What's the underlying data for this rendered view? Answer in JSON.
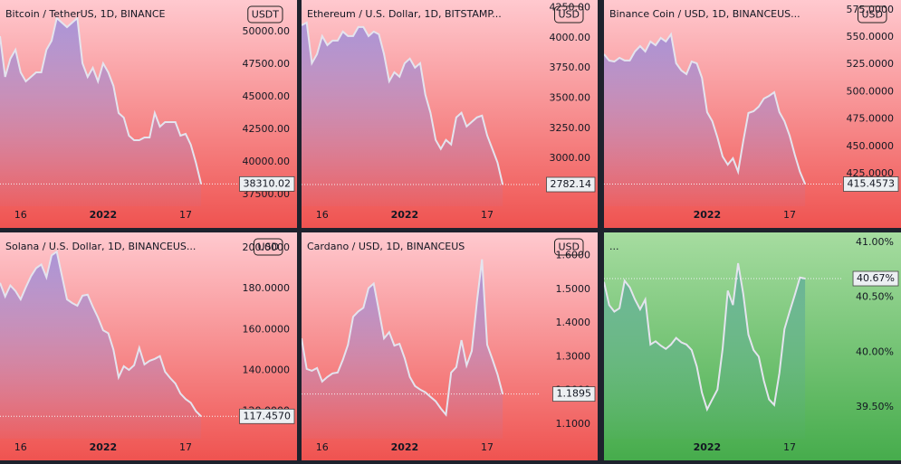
{
  "chart_data": [
    {
      "type": "line",
      "title": "Bitcoin / TetherUS, 1D, BINANCE",
      "currency": "USDT",
      "categories": [
        null,
        null,
        null,
        null,
        "16",
        null,
        null,
        null,
        null,
        null,
        null,
        null,
        null,
        null,
        null,
        null,
        null,
        null,
        null,
        null,
        "2022",
        null,
        null,
        null,
        null,
        null,
        null,
        null,
        null,
        null,
        null,
        null,
        null,
        null,
        null,
        null,
        "17",
        null,
        null,
        null,
        null,
        null,
        null,
        null,
        null,
        null
      ],
      "values": [
        49653,
        46528,
        47917,
        48611,
        46875,
        46181,
        46528,
        46875,
        46875,
        48611,
        49306,
        51042,
        50694,
        50347,
        50694,
        51042,
        47569,
        46528,
        47222,
        46181,
        47569,
        46875,
        45833,
        43750,
        43403,
        42014,
        41667,
        41667,
        41875,
        41875,
        43750,
        42708,
        43056,
        43056,
        43056,
        42014,
        42153,
        41319,
        39931,
        38310.02,
        null,
        null,
        null,
        null,
        null,
        null
      ],
      "last_value": 38310.02,
      "ylim": [
        36600,
        52430
      ],
      "yticks": [
        {
          "value": 37500,
          "label": "37500.00"
        },
        {
          "value": 40000,
          "label": "40000.00"
        },
        {
          "value": 42500,
          "label": "42500.00"
        },
        {
          "value": 45000,
          "label": "45000.00"
        },
        {
          "value": 47500,
          "label": "47500.00"
        },
        {
          "value": 50000,
          "label": "50000.00"
        }
      ],
      "color": "#e4e4ee",
      "fill_color": "#8f86dc",
      "background": [
        "#ffc9cf",
        "#ef5350"
      ]
    },
    {
      "type": "line",
      "title": "Ethereum / U.S. Dollar, 1D, BITSTAMP...",
      "currency": "USD",
      "categories": [
        null,
        null,
        null,
        null,
        "16",
        null,
        null,
        null,
        null,
        null,
        null,
        null,
        null,
        null,
        null,
        null,
        null,
        null,
        null,
        null,
        "2022",
        null,
        null,
        null,
        null,
        null,
        null,
        null,
        null,
        null,
        null,
        null,
        null,
        null,
        null,
        null,
        "17",
        null,
        null,
        null,
        null,
        null,
        null,
        null,
        null,
        null
      ],
      "values": [
        4105,
        4128,
        3790,
        3865,
        4015,
        3940,
        3978,
        3978,
        4053,
        4015,
        4015,
        4090,
        4090,
        4015,
        4053,
        4030,
        3865,
        3640,
        3715,
        3678,
        3790,
        3828,
        3753,
        3790,
        3528,
        3378,
        3153,
        3078,
        3153,
        3115,
        3340,
        3378,
        3265,
        3303,
        3340,
        3355,
        3190,
        3078,
        2965,
        2782.14,
        null,
        null,
        null,
        null,
        null,
        null
      ],
      "last_value": 2782.14,
      "ylim": [
        2602,
        4315
      ],
      "yticks": [
        {
          "value": 3000,
          "label": "3000.00"
        },
        {
          "value": 3250,
          "label": "3250.00"
        },
        {
          "value": 3500,
          "label": "3500.00"
        },
        {
          "value": 3750,
          "label": "3750.00"
        },
        {
          "value": 4000,
          "label": "4000.00"
        },
        {
          "value": 4250,
          "label": "4250.00"
        }
      ],
      "color": "#e4e4ee",
      "fill_color": "#8f86dc",
      "background": [
        "#ffc9cf",
        "#ef5350"
      ]
    },
    {
      "type": "line",
      "title": "Binance Coin / USD, 1D, BINANCEUS...",
      "currency": "USD",
      "categories": [
        null,
        null,
        null,
        null,
        null,
        null,
        null,
        null,
        null,
        null,
        null,
        null,
        null,
        null,
        null,
        null,
        null,
        null,
        null,
        null,
        "2022",
        null,
        null,
        null,
        null,
        null,
        null,
        null,
        null,
        null,
        null,
        null,
        null,
        null,
        null,
        null,
        "17",
        null,
        null,
        null,
        null,
        null,
        null,
        null,
        null,
        null
      ],
      "values": [
        534.3,
        528.5,
        527.6,
        531.0,
        528.5,
        528.5,
        536.8,
        541.7,
        536.8,
        545.9,
        542.5,
        549.2,
        545.9,
        552.5,
        526.0,
        519.4,
        516.1,
        527.6,
        526.0,
        512.7,
        481.3,
        473.0,
        458.1,
        440.7,
        433.3,
        439.1,
        426.7,
        454.8,
        480.5,
        482.1,
        486.3,
        493.7,
        496.2,
        499.5,
        481.3,
        473.0,
        459.8,
        442.4,
        426.7,
        415.4573,
        null,
        null,
        null,
        null,
        null,
        null
      ],
      "last_value": 415.4573,
      "ylim": [
        395.2,
        583.9
      ],
      "yticks": [
        {
          "value": 425,
          "label": "425.0000"
        },
        {
          "value": 450,
          "label": "450.0000"
        },
        {
          "value": 475,
          "label": "475.0000"
        },
        {
          "value": 500,
          "label": "500.0000"
        },
        {
          "value": 525,
          "label": "525.0000"
        },
        {
          "value": 550,
          "label": "550.0000"
        },
        {
          "value": 575,
          "label": "575.0000"
        }
      ],
      "color": "#e4e4ee",
      "fill_color": "#8f86dc",
      "background": [
        "#ffc9cf",
        "#ef5350"
      ]
    },
    {
      "type": "line",
      "title": "Solana / U.S. Dollar, 1D, BINANCEUS...",
      "currency": "USD",
      "categories": [
        null,
        null,
        null,
        null,
        "16",
        null,
        null,
        null,
        null,
        null,
        null,
        null,
        null,
        null,
        null,
        null,
        null,
        null,
        null,
        null,
        "2022",
        null,
        null,
        null,
        null,
        null,
        null,
        null,
        null,
        null,
        null,
        null,
        null,
        null,
        null,
        null,
        "17",
        null,
        null,
        null,
        null,
        null,
        null,
        null,
        null,
        null
      ],
      "values": [
        182.9,
        176.2,
        181.6,
        178.9,
        174.8,
        180.7,
        186.1,
        190.1,
        191.9,
        185.6,
        196.4,
        198.2,
        186.5,
        174.8,
        173.0,
        171.7,
        176.6,
        177.1,
        171.2,
        165.9,
        159.6,
        158.2,
        150.1,
        136.6,
        142.0,
        140.2,
        142.5,
        151.0,
        142.9,
        144.7,
        145.6,
        147.0,
        139.3,
        136.2,
        133.5,
        128.6,
        125.9,
        124.1,
        120.0,
        117.457,
        null,
        null,
        null,
        null,
        null,
        null
      ],
      "last_value": {
        "value": 117.457,
        "label": "117.4570"
      },
      "ylim": [
        106.5,
        207.6
      ],
      "yticks": [
        {
          "value": 120,
          "label": "120.0000"
        },
        {
          "value": 140,
          "label": "140.0000"
        },
        {
          "value": 160,
          "label": "160.0000"
        },
        {
          "value": 180,
          "label": "180.0000"
        },
        {
          "value": 200,
          "label": "200.0000"
        }
      ],
      "color": "#e4e4ee",
      "fill_color": "#8f86dc",
      "background": [
        "#ffc9cf",
        "#ef5350"
      ]
    },
    {
      "type": "line",
      "title": "Cardano / USD, 1D, BINANCEUS",
      "currency": "USD",
      "categories": [
        null,
        null,
        null,
        null,
        "16",
        null,
        null,
        null,
        null,
        null,
        null,
        null,
        null,
        null,
        null,
        null,
        null,
        null,
        null,
        null,
        "2022",
        null,
        null,
        null,
        null,
        null,
        null,
        null,
        null,
        null,
        null,
        null,
        null,
        null,
        null,
        null,
        "17",
        null,
        null,
        null,
        null,
        null,
        null,
        null,
        null,
        null
      ],
      "values": [
        1.3547,
        1.264,
        1.2587,
        1.2667,
        1.2267,
        1.24,
        1.2507,
        1.2533,
        1.2907,
        1.336,
        1.4187,
        1.4347,
        1.4453,
        1.504,
        1.5173,
        1.4373,
        1.3547,
        1.3733,
        1.3333,
        1.3387,
        1.296,
        1.24,
        1.2133,
        1.2027,
        1.1947,
        1.1813,
        1.168,
        1.1467,
        1.128,
        1.2533,
        1.2693,
        1.3493,
        1.2747,
        1.3173,
        1.464,
        1.5893,
        1.336,
        1.2933,
        1.248,
        1.1895,
        null,
        null,
        null,
        null,
        null,
        null
      ],
      "last_value": 1.1895,
      "ylim": [
        1.057,
        1.669
      ],
      "yticks": [
        {
          "value": 1.1,
          "label": "1.1000"
        },
        {
          "value": 1.2,
          "label": "1.2000"
        },
        {
          "value": 1.3,
          "label": "1.3000"
        },
        {
          "value": 1.4,
          "label": "1.4000"
        },
        {
          "value": 1.5,
          "label": "1.5000"
        },
        {
          "value": 1.6,
          "label": "1.6000"
        }
      ],
      "color": "#e4e4ee",
      "fill_color": "#8f86dc",
      "background": [
        "#ffc9cf",
        "#ef5350"
      ]
    },
    {
      "type": "line",
      "title": "...",
      "categories": [
        null,
        null,
        null,
        null,
        null,
        null,
        null,
        null,
        null,
        null,
        null,
        null,
        null,
        null,
        null,
        null,
        null,
        null,
        null,
        null,
        "2022",
        null,
        null,
        null,
        null,
        null,
        null,
        null,
        null,
        null,
        null,
        null,
        null,
        null,
        null,
        null,
        "17",
        null,
        null,
        null,
        null,
        null,
        null,
        null,
        null,
        null
      ],
      "values": [
        40.64,
        40.43,
        40.37,
        40.4,
        40.65,
        40.59,
        40.48,
        40.39,
        40.48,
        40.07,
        40.1,
        40.06,
        40.03,
        40.07,
        40.13,
        40.09,
        40.07,
        40.02,
        39.87,
        39.63,
        39.48,
        39.57,
        39.66,
        40.03,
        40.56,
        40.43,
        40.81,
        40.53,
        40.16,
        40.02,
        39.96,
        39.74,
        39.57,
        39.52,
        39.81,
        40.21,
        40.37,
        40.52,
        40.68,
        40.67,
        null,
        null,
        null,
        null,
        null,
        null
      ],
      "last_value": {
        "value": 40.67,
        "label": "40.67%"
      },
      "ylim": [
        39.213,
        41.09
      ],
      "yticks": [
        {
          "value": 39.5,
          "label": "39.50%"
        },
        {
          "value": 40,
          "label": "40.00%"
        },
        {
          "value": 40.5,
          "label": "40.50%"
        },
        {
          "value": 41,
          "label": "41.00%"
        }
      ],
      "color": "#e4e4ee",
      "fill_color": "#5aa89a",
      "background": [
        "#a6dca0",
        "#46ac4c"
      ]
    }
  ]
}
